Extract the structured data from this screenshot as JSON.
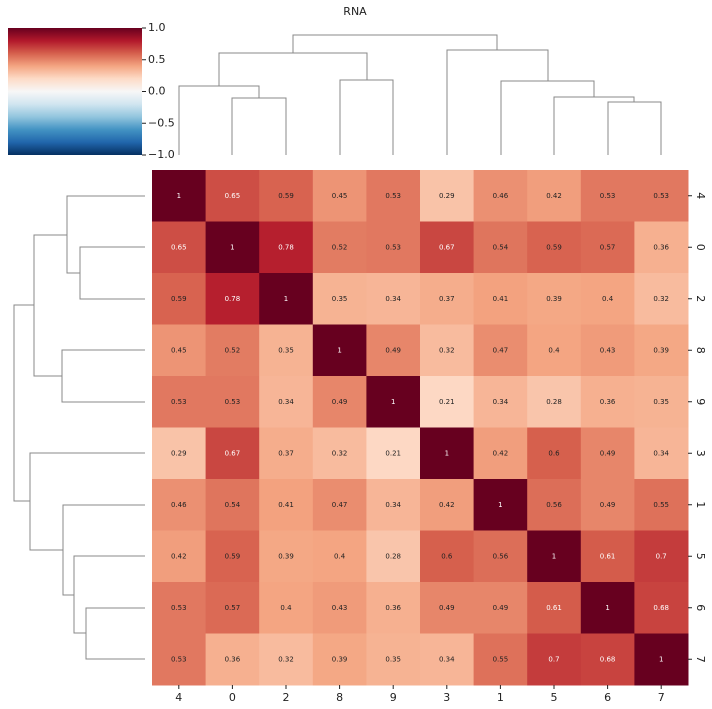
{
  "chart_data": {
    "type": "heatmap",
    "title": "RNA",
    "x_categories": [
      "4",
      "0",
      "2",
      "8",
      "9",
      "3",
      "1",
      "5",
      "6",
      "7"
    ],
    "y_categories": [
      "4",
      "0",
      "2",
      "8",
      "9",
      "3",
      "1",
      "5",
      "6",
      "7"
    ],
    "values": [
      [
        1,
        0.65,
        0.59,
        0.45,
        0.53,
        0.29,
        0.46,
        0.42,
        0.53,
        0.53
      ],
      [
        0.65,
        1,
        0.78,
        0.52,
        0.53,
        0.67,
        0.54,
        0.59,
        0.57,
        0.36
      ],
      [
        0.59,
        0.78,
        1,
        0.35,
        0.34,
        0.37,
        0.41,
        0.39,
        0.4,
        0.32
      ],
      [
        0.45,
        0.52,
        0.35,
        1,
        0.49,
        0.32,
        0.47,
        0.4,
        0.43,
        0.39
      ],
      [
        0.53,
        0.53,
        0.34,
        0.49,
        1,
        0.21,
        0.34,
        0.28,
        0.36,
        0.35
      ],
      [
        0.29,
        0.67,
        0.37,
        0.32,
        0.21,
        1,
        0.42,
        0.6,
        0.49,
        0.34
      ],
      [
        0.46,
        0.54,
        0.41,
        0.47,
        0.34,
        0.42,
        1,
        0.56,
        0.49,
        0.55
      ],
      [
        0.42,
        0.59,
        0.39,
        0.4,
        0.28,
        0.6,
        0.56,
        1,
        0.61,
        0.7
      ],
      [
        0.53,
        0.57,
        0.4,
        0.43,
        0.36,
        0.49,
        0.49,
        0.61,
        1,
        0.68
      ],
      [
        0.53,
        0.36,
        0.32,
        0.39,
        0.35,
        0.34,
        0.55,
        0.7,
        0.68,
        1
      ]
    ],
    "clim": [
      -1,
      1
    ],
    "cticks": [
      {
        "value": -1,
        "label": "−1.0"
      },
      {
        "value": -0.5,
        "label": "−0.5"
      },
      {
        "value": 0,
        "label": "0.0"
      },
      {
        "value": 0.5,
        "label": "0.5"
      },
      {
        "value": 1,
        "label": "1.0"
      }
    ],
    "colors": [
      "#053061",
      "#2166ac",
      "#4393c3",
      "#92c5de",
      "#d1e5f0",
      "#f7f7f7",
      "#fddbc7",
      "#f4a582",
      "#d6604d",
      "#b2182b",
      "#67001f"
    ]
  }
}
